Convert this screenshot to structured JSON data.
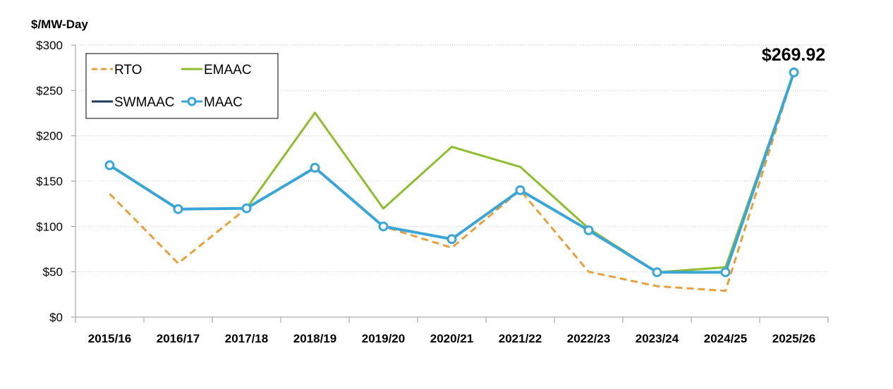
{
  "chart_data": {
    "type": "line",
    "title": "",
    "ylabel": "$/MW-Day",
    "xlabel": "",
    "ylim": [
      0,
      300
    ],
    "yticks": [
      0,
      50,
      100,
      150,
      200,
      250,
      300
    ],
    "ytick_labels": [
      "$0",
      "$50",
      "$100",
      "$150",
      "$200",
      "$250",
      "$300"
    ],
    "grid": "horizontal dotted",
    "legend_position": "top-left",
    "categories": [
      "2015/16",
      "2016/17",
      "2017/18",
      "2018/19",
      "2019/20",
      "2020/21",
      "2021/22",
      "2022/23",
      "2023/24",
      "2024/25",
      "2025/26"
    ],
    "series": [
      {
        "name": "RTO",
        "color": "#E8A03A",
        "style": "dashed",
        "values": [
          136.0,
          59.37,
          120.0,
          164.77,
          100.0,
          76.53,
          140.0,
          50.0,
          34.13,
          28.92,
          269.92
        ]
      },
      {
        "name": "EMAAC",
        "color": "#8DBE2E",
        "style": "solid",
        "values": [
          167.46,
          119.13,
          120.0,
          225.42,
          119.77,
          187.87,
          165.73,
          97.86,
          49.49,
          54.95,
          269.92
        ]
      },
      {
        "name": "SWMAAC",
        "color": "#1B3A5C",
        "style": "solid",
        "values": [
          167.46,
          119.13,
          120.0,
          164.77,
          100.0,
          86.04,
          140.0,
          95.79,
          49.49,
          49.49,
          269.92
        ]
      },
      {
        "name": "MAAC",
        "color": "#3AA6D8",
        "style": "solid-markers",
        "values": [
          167.46,
          119.13,
          120.0,
          164.77,
          100.0,
          86.04,
          140.0,
          95.79,
          49.49,
          49.49,
          269.92
        ]
      }
    ],
    "annotations": [
      {
        "category": "2025/26",
        "text": "$269.92"
      }
    ]
  }
}
